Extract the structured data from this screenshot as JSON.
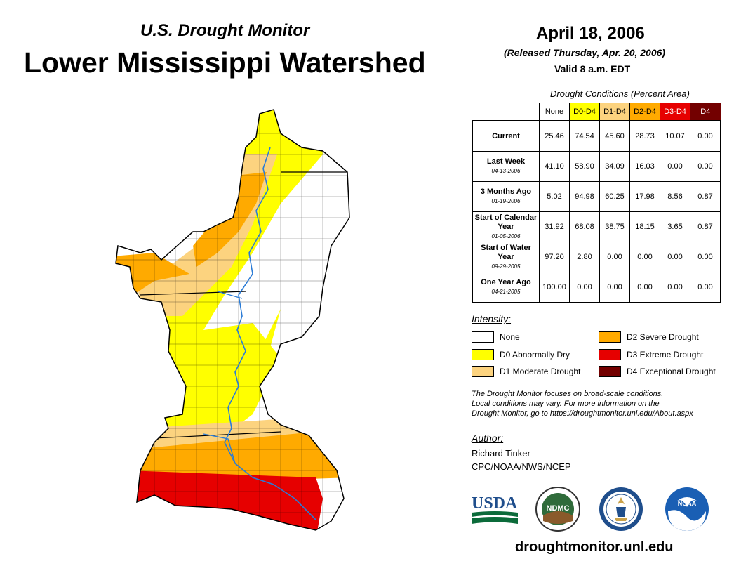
{
  "header": {
    "subtitle": "U.S. Drought Monitor",
    "title": "Lower Mississippi Watershed",
    "date": "April 18, 2006",
    "released": "(Released Thursday, Apr. 20, 2006)",
    "valid": "Valid 8 a.m. EDT"
  },
  "table": {
    "caption": "Drought Conditions (Percent Area)",
    "columns": [
      "None",
      "D0-D4",
      "D1-D4",
      "D2-D4",
      "D3-D4",
      "D4"
    ],
    "column_colors": [
      "#ffffff",
      "#ffff00",
      "#fcd37f",
      "#ffaa00",
      "#e60000",
      "#730000"
    ],
    "rows": [
      {
        "label": "Current",
        "date": "",
        "values": [
          "25.46",
          "74.54",
          "45.60",
          "28.73",
          "10.07",
          "0.00"
        ]
      },
      {
        "label": "Last Week",
        "date": "04-13-2006",
        "values": [
          "41.10",
          "58.90",
          "34.09",
          "16.03",
          "0.00",
          "0.00"
        ]
      },
      {
        "label": "3 Months Ago",
        "date": "01-19-2006",
        "values": [
          "5.02",
          "94.98",
          "60.25",
          "17.98",
          "8.56",
          "0.87"
        ]
      },
      {
        "label": "Start of Calendar Year",
        "date": "01-05-2006",
        "values": [
          "31.92",
          "68.08",
          "38.75",
          "18.15",
          "3.65",
          "0.87"
        ]
      },
      {
        "label": "Start of Water Year",
        "date": "09-29-2005",
        "values": [
          "97.20",
          "2.80",
          "0.00",
          "0.00",
          "0.00",
          "0.00"
        ]
      },
      {
        "label": "One Year Ago",
        "date": "04-21-2005",
        "values": [
          "100.00",
          "0.00",
          "0.00",
          "0.00",
          "0.00",
          "0.00"
        ]
      }
    ]
  },
  "legend": {
    "title": "Intensity:",
    "items": [
      {
        "label": "None",
        "color": "#ffffff"
      },
      {
        "label": "D0 Abnormally Dry",
        "color": "#ffff00"
      },
      {
        "label": "D1 Moderate Drought",
        "color": "#fcd37f"
      },
      {
        "label": "D2 Severe Drought",
        "color": "#ffaa00"
      },
      {
        "label": "D3 Extreme Drought",
        "color": "#e60000"
      },
      {
        "label": "D4 Exceptional Drought",
        "color": "#730000"
      }
    ]
  },
  "note": {
    "line1": "The Drought Monitor focuses on broad-scale conditions.",
    "line2": "Local conditions may vary. For more information on the",
    "line3": "Drought Monitor, go to https://droughtmonitor.unl.edu/About.aspx"
  },
  "author": {
    "title": "Author:",
    "name": "Richard Tinker",
    "org": "CPC/NOAA/NWS/NCEP"
  },
  "logos": {
    "usda": "USDA",
    "ndmc": "NDMC",
    "noaa": "NOAA"
  },
  "website": "droughtmonitor.unl.edu"
}
